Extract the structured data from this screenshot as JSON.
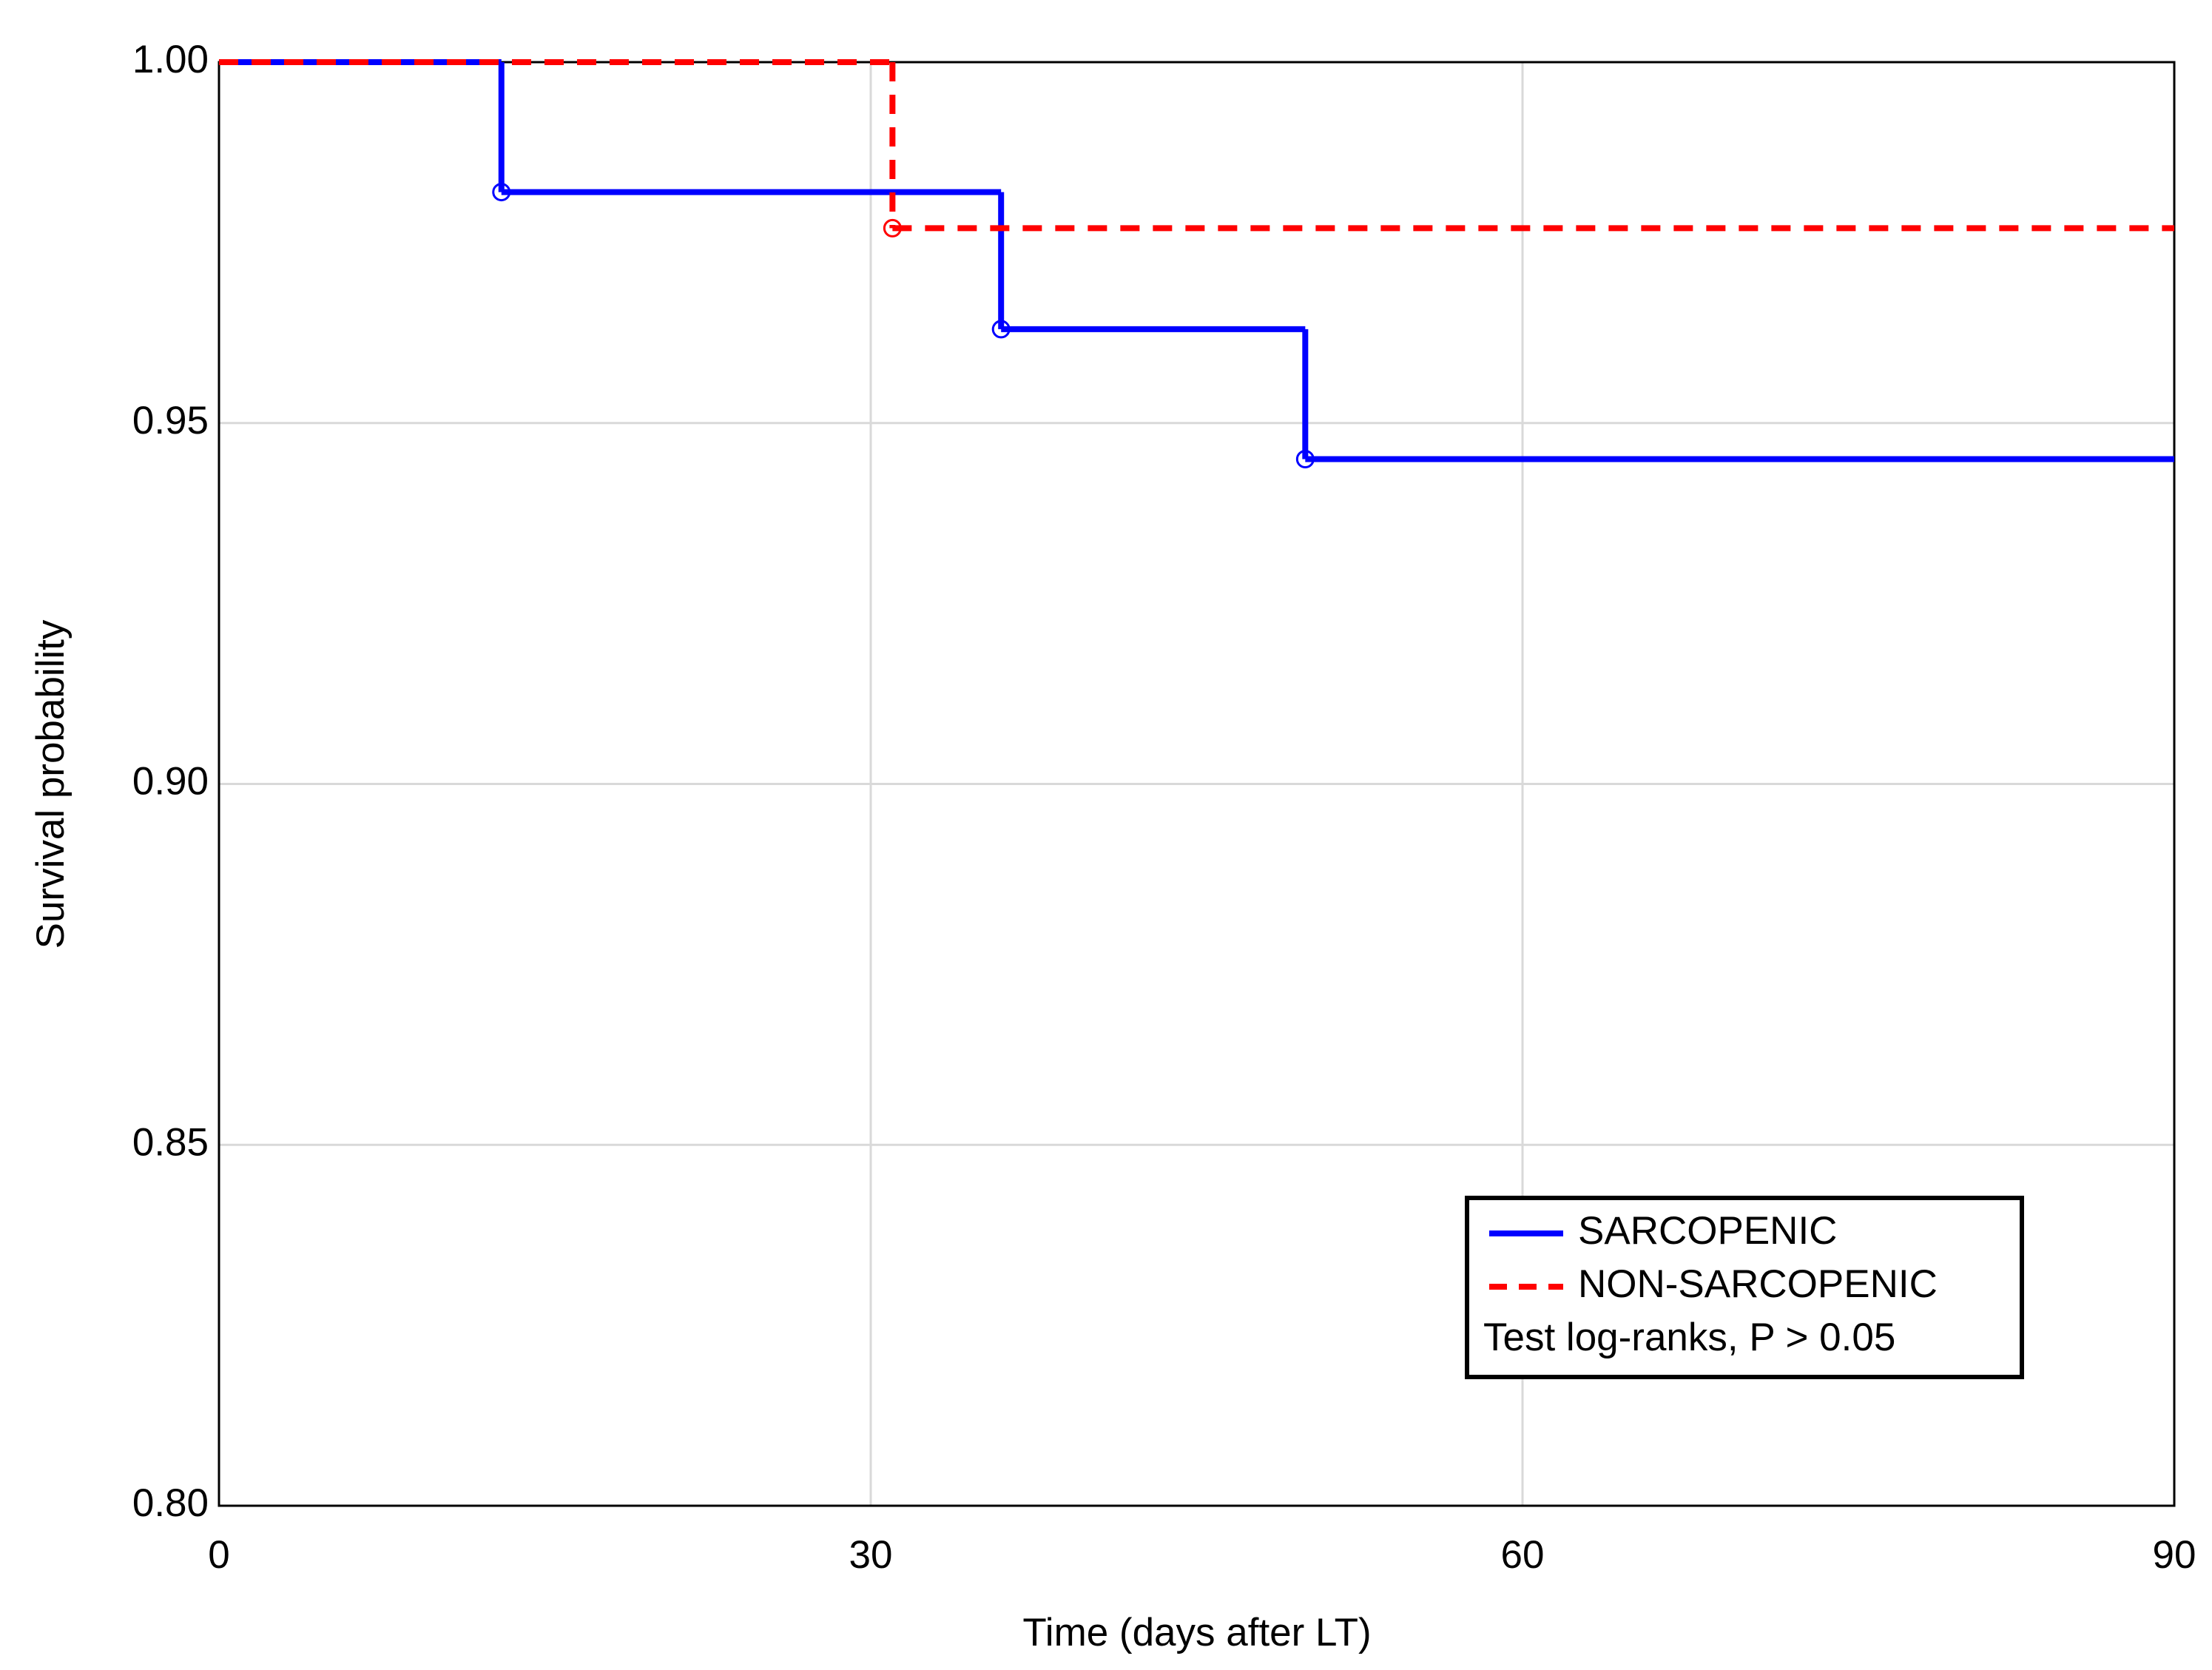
{
  "chart_data": {
    "type": "step",
    "x_label": "Time (days after LT)",
    "y_label": "Survival probability",
    "xlim": [
      0,
      90
    ],
    "xticks": [
      0,
      30,
      60,
      90
    ],
    "ylim": [
      0.8,
      1.0
    ],
    "yticks": [
      {
        "value": 0.8,
        "label": "0.80"
      },
      {
        "value": 0.85,
        "label": "0.85"
      },
      {
        "value": 0.9,
        "label": "0.90"
      },
      {
        "value": 0.95,
        "label": "0.95"
      },
      {
        "value": 1.0,
        "label": "1.00"
      }
    ],
    "grid": true,
    "legend": "lower right",
    "annotation": "Test log-ranks, P > 0.05",
    "series": [
      {
        "name": "SARCOPENIC",
        "color": "#0000ff",
        "dashed": false,
        "x": [
          0,
          13,
          36,
          50
        ],
        "values": [
          1.0,
          0.982,
          0.963,
          0.945
        ]
      },
      {
        "name": "NON-SARCOPENIC",
        "color": "#ff0000",
        "dashed": true,
        "x": [
          0,
          31
        ],
        "values": [
          1.0,
          0.977
        ]
      }
    ]
  }
}
